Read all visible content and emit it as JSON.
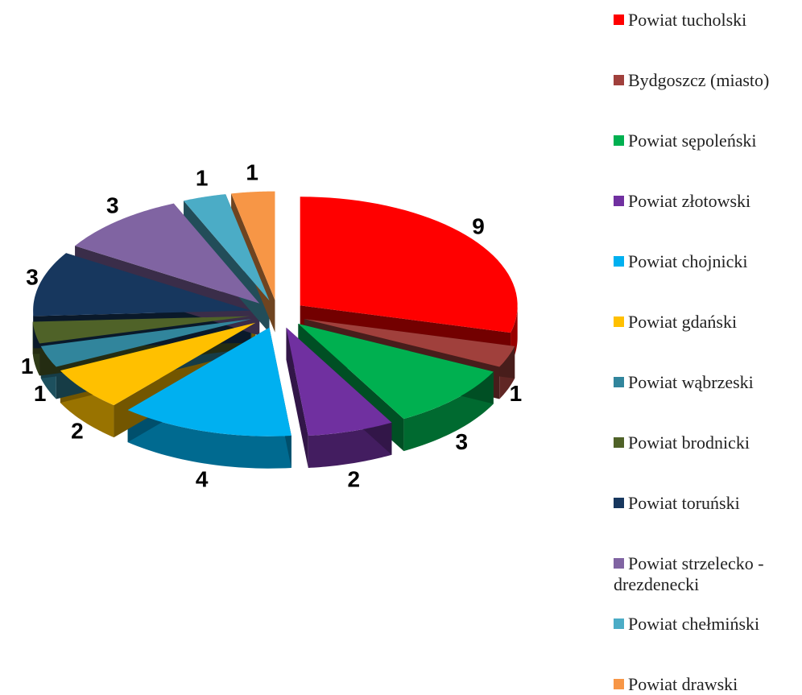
{
  "chart_data": {
    "type": "pie",
    "categories": [
      "Powiat tucholski",
      "Bydgoszcz (miasto)",
      "Powiat sępoleński",
      "Powiat złotowski",
      "Powiat chojnicki",
      "Powiat gdański",
      "Powiat wąbrzeski",
      "Powiat brodnicki",
      "Powiat toruński",
      "Powiat strzelecko - drezdenecki",
      "Powiat chełmiński",
      "Powiat drawski"
    ],
    "values": [
      9,
      1,
      3,
      2,
      4,
      2,
      1,
      1,
      3,
      3,
      1,
      1
    ],
    "colors": [
      "#ff0000",
      "#a0403c",
      "#00b050",
      "#7030a0",
      "#00b0f0",
      "#ffc000",
      "#31859c",
      "#4f6228",
      "#17375e",
      "#8064a2",
      "#4bacc6",
      "#f79646"
    ],
    "legend": "right"
  }
}
